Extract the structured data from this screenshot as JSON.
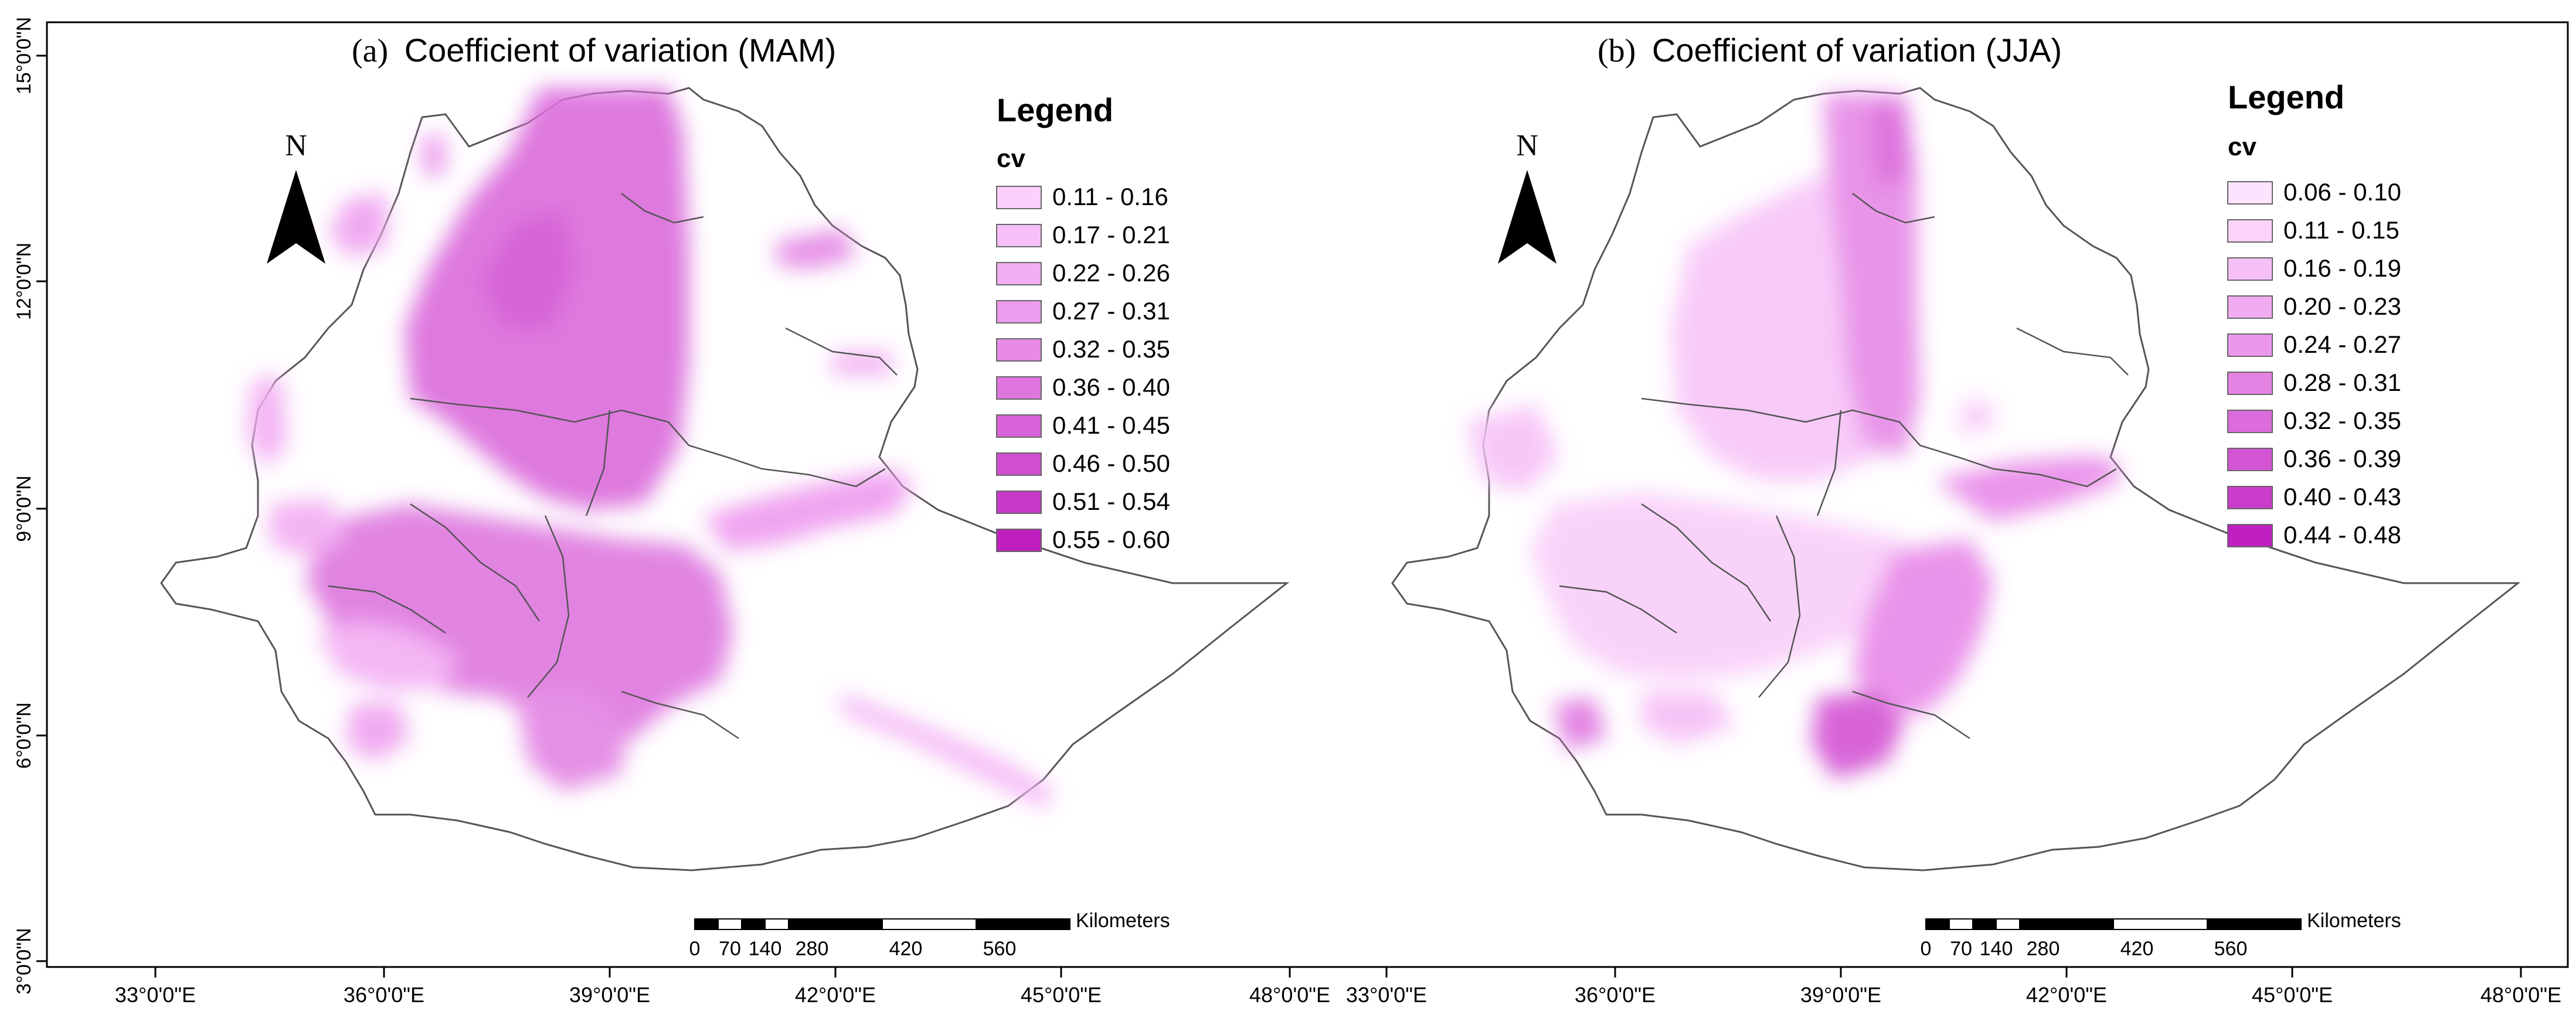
{
  "panels": [
    {
      "title": "(a) Coefficient of variation (MAM)",
      "title_prefix": "(a)",
      "title_rest": "Coefficient of variation (MAM)",
      "legend_title": "Legend",
      "legend_subtitle": "cv",
      "legend_classes": [
        {
          "label": "0.11 - 0.16",
          "color": "#fbd0fb"
        },
        {
          "label": "0.17 - 0.21",
          "color": "#f7bff7"
        },
        {
          "label": "0.22 - 0.26",
          "color": "#f2aef2"
        },
        {
          "label": "0.27 - 0.31",
          "color": "#ec9cec"
        },
        {
          "label": "0.32 - 0.35",
          "color": "#e68ae6"
        },
        {
          "label": "0.36 - 0.40",
          "color": "#df76df"
        },
        {
          "label": "0.41 - 0.45",
          "color": "#d862d8"
        },
        {
          "label": "0.46 - 0.50",
          "color": "#d04ed0"
        },
        {
          "label": "0.51 - 0.54",
          "color": "#c838c8"
        },
        {
          "label": "0.55 - 0.60",
          "color": "#bf1fbf"
        }
      ]
    },
    {
      "title": "(b) Coefficient of variation (JJA)",
      "title_prefix": "(b)",
      "title_rest": "Coefficient of variation (JJA)",
      "legend_title": "Legend",
      "legend_subtitle": "cv",
      "legend_classes": [
        {
          "label": "0.06 - 0.10",
          "color": "#fde3fd"
        },
        {
          "label": "0.11 - 0.15",
          "color": "#fad2fa"
        },
        {
          "label": "0.16 - 0.19",
          "color": "#f6c0f6"
        },
        {
          "label": "0.20 - 0.23",
          "color": "#f1acf1"
        },
        {
          "label": "0.24 - 0.27",
          "color": "#eb97eb"
        },
        {
          "label": "0.28 - 0.31",
          "color": "#e482e4"
        },
        {
          "label": "0.32 - 0.35",
          "color": "#dc6cdc"
        },
        {
          "label": "0.36 - 0.39",
          "color": "#d455d4"
        },
        {
          "label": "0.40 - 0.43",
          "color": "#cb3ccb"
        },
        {
          "label": "0.44 - 0.48",
          "color": "#c01fc0"
        }
      ]
    }
  ],
  "north_arrow_label": "N",
  "scale_bar": {
    "unit": "Kilometers",
    "ticks": [
      "0",
      "70",
      "140",
      "280",
      "420",
      "560"
    ]
  },
  "lat_ticks": [
    "15°0'0\"N",
    "12°0'0\"N",
    "9°0'0\"N",
    "6°0'0\"N",
    "3°0'0\"N"
  ],
  "lon_ticks": [
    "33°0'0\"E",
    "36°0'0\"E",
    "39°0'0\"E",
    "42°0'0\"E",
    "45°0'0\"E",
    "48°0'0\"E"
  ],
  "colors": {
    "boundary": "#555555",
    "frame": "#000000"
  }
}
